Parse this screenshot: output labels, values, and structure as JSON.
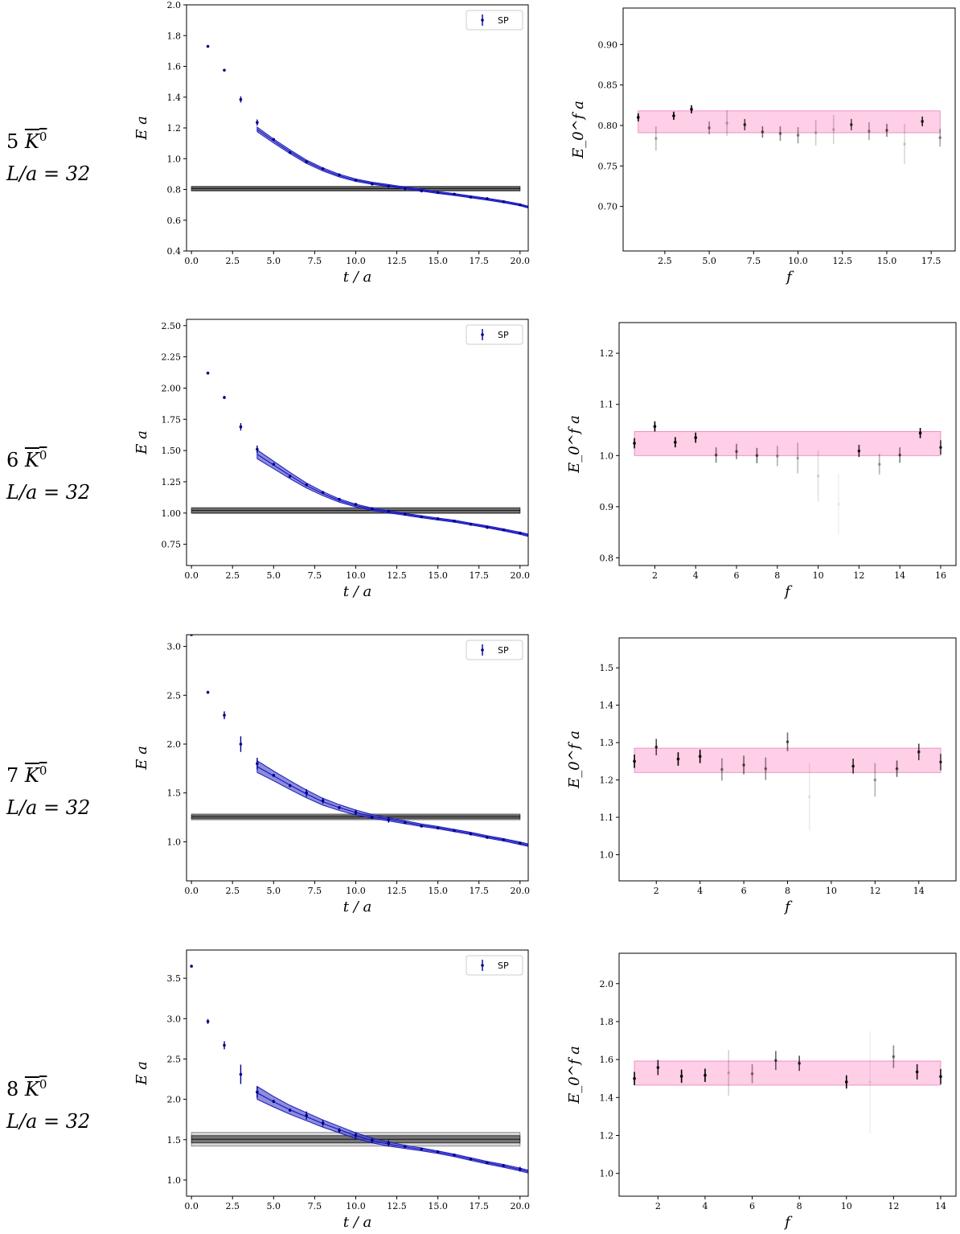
{
  "row_labels": [
    {
      "num": "5",
      "particle": "K",
      "sup": "0",
      "volume": "L/a = 32"
    },
    {
      "num": "6",
      "particle": "K",
      "sup": "0",
      "volume": "L/a = 32"
    },
    {
      "num": "7",
      "particle": "K",
      "sup": "0",
      "volume": "L/a = 32"
    },
    {
      "num": "8",
      "particle": "K",
      "sup": "0",
      "volume": "L/a = 32"
    }
  ],
  "colors": {
    "data": "#00008b",
    "band_fill": "#5050c8",
    "band_line": "#1a1abf",
    "fit": "#555555",
    "pink": "#ff9dd0",
    "frame": "#000000"
  },
  "chart_data": [
    {
      "type": "scatter",
      "panel": "effective-energy",
      "row": 0,
      "xlabel": "t / a",
      "ylabel": "E a",
      "legend": "SP",
      "legend_position": "top-right",
      "xlim": [
        -0.3,
        20.5
      ],
      "ylim": [
        0.4,
        2.0
      ],
      "xticks": [
        0.0,
        2.5,
        5.0,
        7.5,
        10.0,
        12.5,
        15.0,
        17.5,
        20.0
      ],
      "xtick_labels": [
        "0.0",
        "2.5",
        "5.0",
        "7.5",
        "10.0",
        "12.5",
        "15.0",
        "17.5",
        "20.0"
      ],
      "yticks": [
        0.4,
        0.6,
        0.8,
        1.0,
        1.2,
        1.4,
        1.6,
        1.8,
        2.0
      ],
      "ytick_labels": [
        "0.4",
        "0.6",
        "0.8",
        "1.0",
        "1.2",
        "1.4",
        "1.6",
        "1.8",
        "2.0"
      ],
      "x": [
        1,
        2,
        3,
        4,
        5,
        6,
        7,
        8,
        9,
        10,
        11,
        12,
        13,
        14,
        15,
        16,
        17,
        18,
        19,
        20
      ],
      "y": [
        1.73,
        1.575,
        1.385,
        1.235,
        1.125,
        1.04,
        0.98,
        0.935,
        0.895,
        0.86,
        0.835,
        0.82,
        0.805,
        0.79,
        0.78,
        0.77,
        0.75,
        0.74,
        0.72,
        0.7
      ],
      "yerr": [
        0.005,
        0.005,
        0.02,
        0.02,
        0.005,
        0.005,
        0.005,
        0.005,
        0.005,
        0.005,
        0.005,
        0.005,
        0.005,
        0.005,
        0.005,
        0.005,
        0.005,
        0.005,
        0.005,
        0.005
      ],
      "fit_band": {
        "t": [
          4,
          5,
          6,
          7,
          8,
          9,
          10,
          11,
          12,
          13,
          14,
          15,
          16,
          17,
          18,
          19,
          20,
          20.5
        ],
        "center": [
          1.19,
          1.115,
          1.045,
          0.98,
          0.93,
          0.89,
          0.86,
          0.84,
          0.825,
          0.81,
          0.795,
          0.78,
          0.767,
          0.752,
          0.737,
          0.72,
          0.7,
          0.685
        ],
        "halfwidth": [
          0.015,
          0.013,
          0.012,
          0.011,
          0.01,
          0.009,
          0.008,
          0.007,
          0.007,
          0.006,
          0.006,
          0.006,
          0.006,
          0.006,
          0.006,
          0.006,
          0.006,
          0.006
        ]
      },
      "plateau": {
        "value": 0.805,
        "halfwidth": 0.012,
        "halfwidth_outer": 0.016,
        "t_range": [
          0,
          20
        ]
      }
    },
    {
      "type": "scatter",
      "panel": "energy-vs-f",
      "row": 0,
      "xlabel": "f",
      "ylabel": "E_0^f a",
      "xlim": [
        0.15,
        18.85
      ],
      "ylim": [
        0.645,
        0.945
      ],
      "xticks": [
        2.5,
        5.0,
        7.5,
        10.0,
        12.5,
        15.0,
        17.5
      ],
      "xtick_labels": [
        "2.5",
        "5.0",
        "7.5",
        "10.0",
        "12.5",
        "15.0",
        "17.5"
      ],
      "yticks": [
        0.7,
        0.75,
        0.8,
        0.85,
        0.9
      ],
      "ytick_labels": [
        "0.70",
        "0.75",
        "0.80",
        "0.85",
        "0.90"
      ],
      "band": {
        "lo": 0.791,
        "hi": 0.818,
        "f_range": [
          1,
          18
        ]
      },
      "f": [
        1,
        2,
        3,
        4,
        5,
        6,
        7,
        8,
        9,
        10,
        11,
        12,
        13,
        14,
        15,
        16,
        17,
        18
      ],
      "E": [
        0.81,
        0.784,
        0.812,
        0.82,
        0.797,
        0.803,
        0.801,
        0.792,
        0.79,
        0.788,
        0.791,
        0.795,
        0.801,
        0.793,
        0.794,
        0.777,
        0.805,
        0.785
      ],
      "err": [
        0.005,
        0.015,
        0.005,
        0.005,
        0.008,
        0.016,
        0.007,
        0.007,
        0.009,
        0.01,
        0.016,
        0.018,
        0.007,
        0.011,
        0.008,
        0.025,
        0.006,
        0.011
      ],
      "opacity": [
        1,
        0.25,
        1,
        1,
        0.4,
        0.2,
        0.7,
        0.55,
        0.45,
        0.4,
        0.2,
        0.18,
        0.65,
        0.35,
        0.5,
        0.15,
        0.85,
        0.35
      ]
    },
    {
      "type": "scatter",
      "panel": "effective-energy",
      "row": 1,
      "xlabel": "t / a",
      "ylabel": "E a",
      "legend": "SP",
      "legend_position": "top-right",
      "xlim": [
        -0.3,
        20.5
      ],
      "ylim": [
        0.58,
        2.55
      ],
      "xticks": [
        0.0,
        2.5,
        5.0,
        7.5,
        10.0,
        12.5,
        15.0,
        17.5,
        20.0
      ],
      "xtick_labels": [
        "0.0",
        "2.5",
        "5.0",
        "7.5",
        "10.0",
        "12.5",
        "15.0",
        "17.5",
        "20.0"
      ],
      "yticks": [
        0.75,
        1.0,
        1.25,
        1.5,
        1.75,
        2.0,
        2.25,
        2.5
      ],
      "ytick_labels": [
        "0.75",
        "1.00",
        "1.25",
        "1.50",
        "1.75",
        "2.00",
        "2.25",
        "2.50"
      ],
      "x": [
        1,
        2,
        3,
        4,
        5,
        6,
        7,
        8,
        9,
        10,
        11,
        12,
        13,
        14,
        15,
        16,
        17,
        18,
        19,
        20
      ],
      "y": [
        2.12,
        1.925,
        1.69,
        1.51,
        1.39,
        1.295,
        1.225,
        1.165,
        1.11,
        1.07,
        1.035,
        1.015,
        0.99,
        0.97,
        0.955,
        0.935,
        0.91,
        0.885,
        0.865,
        0.84
      ],
      "yerr": [
        0.006,
        0.012,
        0.03,
        0.03,
        0.008,
        0.008,
        0.012,
        0.008,
        0.008,
        0.008,
        0.006,
        0.006,
        0.006,
        0.006,
        0.006,
        0.006,
        0.006,
        0.006,
        0.006,
        0.008
      ],
      "fit_band": {
        "t": [
          4,
          5,
          6,
          7,
          8,
          9,
          10,
          11,
          12,
          13,
          14,
          15,
          16,
          17,
          18,
          19,
          20,
          20.5
        ],
        "center": [
          1.47,
          1.385,
          1.3,
          1.22,
          1.155,
          1.1,
          1.06,
          1.03,
          1.01,
          0.99,
          0.97,
          0.952,
          0.935,
          0.912,
          0.89,
          0.865,
          0.838,
          0.822
        ],
        "halfwidth": [
          0.035,
          0.03,
          0.025,
          0.02,
          0.016,
          0.013,
          0.011,
          0.01,
          0.009,
          0.008,
          0.008,
          0.008,
          0.008,
          0.008,
          0.008,
          0.008,
          0.009,
          0.009
        ]
      },
      "plateau": {
        "value": 1.02,
        "halfwidth": 0.018,
        "halfwidth_outer": 0.024,
        "t_range": [
          0,
          20
        ]
      }
    },
    {
      "type": "scatter",
      "panel": "energy-vs-f",
      "row": 1,
      "xlabel": "f",
      "ylabel": "E_0^f a",
      "xlim": [
        0.25,
        16.75
      ],
      "ylim": [
        0.785,
        1.26
      ],
      "xticks": [
        2,
        4,
        6,
        8,
        10,
        12,
        14,
        16
      ],
      "xtick_labels": [
        "2",
        "4",
        "6",
        "8",
        "10",
        "12",
        "14",
        "16"
      ],
      "yticks": [
        0.8,
        0.9,
        1.0,
        1.1,
        1.2
      ],
      "ytick_labels": [
        "0.8",
        "0.9",
        "1.0",
        "1.1",
        "1.2"
      ],
      "band": {
        "lo": 1.0,
        "hi": 1.047,
        "f_range": [
          1,
          16
        ]
      },
      "f": [
        1,
        2,
        3,
        4,
        5,
        6,
        7,
        8,
        9,
        10,
        11,
        12,
        13,
        14,
        15,
        16
      ],
      "E": [
        1.024,
        1.057,
        1.026,
        1.035,
        1.001,
        1.008,
        1.0,
        0.999,
        0.995,
        0.96,
        0.905,
        1.009,
        0.983,
        1.001,
        1.044,
        1.016
      ],
      "err": [
        0.01,
        0.01,
        0.01,
        0.01,
        0.015,
        0.015,
        0.015,
        0.02,
        0.03,
        0.05,
        0.06,
        0.012,
        0.02,
        0.015,
        0.01,
        0.014
      ],
      "opacity": [
        1,
        1,
        1,
        1,
        0.5,
        0.5,
        0.55,
        0.3,
        0.25,
        0.12,
        0.06,
        0.8,
        0.3,
        0.5,
        1,
        0.75
      ]
    },
    {
      "type": "scatter",
      "panel": "effective-energy",
      "row": 2,
      "xlabel": "t / a",
      "ylabel": "E a",
      "legend": "SP",
      "legend_position": "top-right",
      "xlim": [
        -0.3,
        20.5
      ],
      "ylim": [
        0.6,
        3.12
      ],
      "xticks": [
        0.0,
        2.5,
        5.0,
        7.5,
        10.0,
        12.5,
        15.0,
        17.5,
        20.0
      ],
      "xtick_labels": [
        "0.0",
        "2.5",
        "5.0",
        "7.5",
        "10.0",
        "12.5",
        "15.0",
        "17.5",
        "20.0"
      ],
      "yticks": [
        1.0,
        1.5,
        2.0,
        2.5,
        3.0
      ],
      "ytick_labels": [
        "1.0",
        "1.5",
        "2.0",
        "2.5",
        "3.0"
      ],
      "x": [
        0,
        1,
        2,
        3,
        4,
        5,
        6,
        7,
        8,
        9,
        10,
        11,
        12,
        13,
        14,
        15,
        16,
        17,
        18,
        19,
        20
      ],
      "y": [
        3.12,
        2.53,
        2.295,
        2.0,
        1.8,
        1.68,
        1.575,
        1.5,
        1.42,
        1.35,
        1.3,
        1.25,
        1.225,
        1.195,
        1.16,
        1.14,
        1.115,
        1.08,
        1.045,
        1.02,
        0.985
      ],
      "yerr": [
        0.01,
        0.015,
        0.04,
        0.08,
        0.06,
        0.015,
        0.015,
        0.04,
        0.03,
        0.015,
        0.03,
        0.015,
        0.03,
        0.012,
        0.012,
        0.012,
        0.012,
        0.012,
        0.012,
        0.012,
        0.015
      ],
      "fit_band": {
        "t": [
          4,
          5,
          6,
          7,
          8,
          9,
          10,
          11,
          12,
          13,
          14,
          15,
          16,
          17,
          18,
          19,
          20,
          20.5
        ],
        "center": [
          1.77,
          1.675,
          1.58,
          1.49,
          1.41,
          1.35,
          1.3,
          1.26,
          1.23,
          1.2,
          1.17,
          1.145,
          1.115,
          1.085,
          1.05,
          1.02,
          0.985,
          0.965
        ],
        "halfwidth": [
          0.06,
          0.05,
          0.045,
          0.04,
          0.035,
          0.03,
          0.025,
          0.02,
          0.017,
          0.015,
          0.013,
          0.012,
          0.012,
          0.012,
          0.012,
          0.012,
          0.013,
          0.013
        ]
      },
      "plateau": {
        "value": 1.255,
        "halfwidth": 0.02,
        "halfwidth_outer": 0.03,
        "t_range": [
          0,
          20
        ]
      }
    },
    {
      "type": "scatter",
      "panel": "energy-vs-f",
      "row": 2,
      "xlabel": "f",
      "ylabel": "E_0^f a",
      "xlim": [
        0.3,
        15.7
      ],
      "ylim": [
        0.93,
        1.58
      ],
      "xticks": [
        2,
        4,
        6,
        8,
        10,
        12,
        14
      ],
      "xtick_labels": [
        "2",
        "4",
        "6",
        "8",
        "10",
        "12",
        "14"
      ],
      "yticks": [
        1.0,
        1.1,
        1.2,
        1.3,
        1.4,
        1.5
      ],
      "ytick_labels": [
        "1.0",
        "1.1",
        "1.2",
        "1.3",
        "1.4",
        "1.5"
      ],
      "band": {
        "lo": 1.22,
        "hi": 1.285,
        "f_range": [
          1,
          15
        ]
      },
      "f": [
        1,
        2,
        3,
        4,
        5,
        6,
        7,
        8,
        9,
        11,
        12,
        13,
        14,
        15
      ],
      "E": [
        1.25,
        1.288,
        1.256,
        1.263,
        1.228,
        1.24,
        1.23,
        1.302,
        1.155,
        1.237,
        1.2,
        1.23,
        1.275,
        1.248
      ],
      "err": [
        0.018,
        0.022,
        0.018,
        0.018,
        0.03,
        0.025,
        0.03,
        0.025,
        0.09,
        0.02,
        0.045,
        0.022,
        0.022,
        0.022
      ],
      "opacity": [
        1,
        0.7,
        1,
        1,
        0.4,
        0.55,
        0.45,
        0.55,
        0.08,
        0.8,
        0.3,
        0.6,
        0.75,
        0.7
      ]
    },
    {
      "type": "scatter",
      "panel": "effective-energy",
      "row": 3,
      "xlabel": "t / a",
      "ylabel": "E a",
      "legend": "SP",
      "legend_position": "top-right",
      "xlim": [
        -0.3,
        20.5
      ],
      "ylim": [
        0.8,
        3.85
      ],
      "xticks": [
        0.0,
        2.5,
        5.0,
        7.5,
        10.0,
        12.5,
        15.0,
        17.5,
        20.0
      ],
      "xtick_labels": [
        "0.0",
        "2.5",
        "5.0",
        "7.5",
        "10.0",
        "12.5",
        "15.0",
        "17.5",
        "20.0"
      ],
      "yticks": [
        1.0,
        1.5,
        2.0,
        2.5,
        3.0,
        3.5
      ],
      "ytick_labels": [
        "1.0",
        "1.5",
        "2.0",
        "2.5",
        "3.0",
        "3.5"
      ],
      "x": [
        0,
        1,
        2,
        3,
        4,
        5,
        6,
        7,
        8,
        9,
        10,
        11,
        12,
        13,
        14,
        15,
        16,
        17,
        18,
        19,
        20
      ],
      "y": [
        3.65,
        2.965,
        2.67,
        2.31,
        2.09,
        1.975,
        1.865,
        1.8,
        1.705,
        1.615,
        1.555,
        1.49,
        1.455,
        1.415,
        1.385,
        1.35,
        1.31,
        1.26,
        1.215,
        1.18,
        1.135
      ],
      "yerr": [
        0.01,
        0.03,
        0.05,
        0.12,
        0.07,
        0.02,
        0.02,
        0.05,
        0.04,
        0.03,
        0.04,
        0.03,
        0.04,
        0.015,
        0.015,
        0.015,
        0.015,
        0.015,
        0.015,
        0.015,
        0.03
      ],
      "fit_band": {
        "t": [
          4,
          5,
          6,
          7,
          8,
          9,
          10,
          11,
          12,
          13,
          14,
          15,
          16,
          17,
          18,
          19,
          20,
          20.5
        ],
        "center": [
          2.08,
          1.97,
          1.87,
          1.785,
          1.7,
          1.625,
          1.55,
          1.49,
          1.445,
          1.41,
          1.38,
          1.345,
          1.305,
          1.26,
          1.215,
          1.175,
          1.13,
          1.105
        ],
        "halfwidth": [
          0.08,
          0.065,
          0.055,
          0.05,
          0.045,
          0.04,
          0.035,
          0.03,
          0.025,
          0.02,
          0.018,
          0.016,
          0.016,
          0.016,
          0.016,
          0.017,
          0.018,
          0.018
        ]
      },
      "plateau": {
        "value": 1.505,
        "halfwidth": 0.045,
        "halfwidth_outer": 0.085,
        "t_range": [
          0,
          20
        ]
      }
    },
    {
      "type": "scatter",
      "panel": "energy-vs-f",
      "row": 3,
      "xlabel": "f",
      "ylabel": "E_0^f a",
      "xlim": [
        0.35,
        14.65
      ],
      "ylim": [
        0.88,
        2.16
      ],
      "xticks": [
        2,
        4,
        6,
        8,
        10,
        12,
        14
      ],
      "xtick_labels": [
        "2",
        "4",
        "6",
        "8",
        "10",
        "12",
        "14"
      ],
      "yticks": [
        1.0,
        1.2,
        1.4,
        1.6,
        1.8,
        2.0
      ],
      "ytick_labels": [
        "1.0",
        "1.2",
        "1.4",
        "1.6",
        "1.8",
        "2.0"
      ],
      "band": {
        "lo": 1.465,
        "hi": 1.592,
        "f_range": [
          1,
          14
        ]
      },
      "f": [
        1,
        2,
        3,
        4,
        5,
        6,
        7,
        8,
        10,
        11,
        12,
        13,
        14
      ],
      "E": [
        1.5,
        1.558,
        1.512,
        1.517,
        1.53,
        1.525,
        1.595,
        1.58,
        1.482,
        1.48,
        1.615,
        1.535,
        1.51
      ],
      "err": [
        0.035,
        0.04,
        0.035,
        0.035,
        0.12,
        0.05,
        0.05,
        0.04,
        0.035,
        0.27,
        0.06,
        0.04,
        0.04
      ],
      "opacity": [
        1,
        0.85,
        1,
        1,
        0.18,
        0.4,
        0.6,
        0.7,
        1,
        0.06,
        0.45,
        0.9,
        0.9
      ]
    }
  ]
}
